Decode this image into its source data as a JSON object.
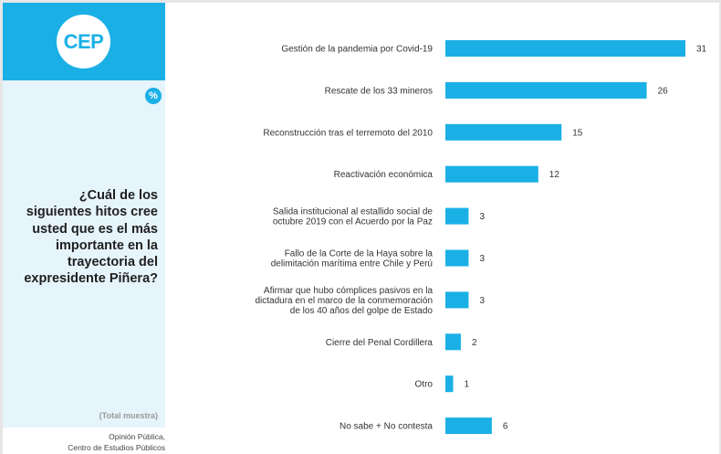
{
  "brand": {
    "logo_text": "CEP",
    "badge": "%"
  },
  "sidebar": {
    "question": "¿Cuál de los siguientes hitos cree usted que es el más importante en la trayectoria del expresidente Piñera?",
    "total": "(Total muestra)",
    "source_line1": "Opinión Pública,",
    "source_line2": "Centro de Estudios Públicos"
  },
  "colors": {
    "accent": "#1ab0e6",
    "panel": "#e6f4fb"
  },
  "chart_data": {
    "type": "bar",
    "orientation": "horizontal",
    "unit": "%",
    "categories": [
      [
        "Gestión de la pandemia por Covid-19"
      ],
      [
        "Rescate de los 33 mineros"
      ],
      [
        "Reconstrucción tras el terremoto del 2010"
      ],
      [
        "Reactivación económica"
      ],
      [
        "Salida institucional al estallido social de",
        "octubre 2019 con el Acuerdo por la Paz"
      ],
      [
        "Fallo de la Corte de la Haya sobre la",
        "delimitación marítima entre Chile y Perú"
      ],
      [
        "Afirmar que hubo cómplices pasivos en la",
        "dictadura en el marco de la conmemoración",
        "de los 40 años del golpe de Estado"
      ],
      [
        "Cierre del Penal Cordillera"
      ],
      [
        "Otro"
      ],
      [
        "No sabe + No contesta"
      ]
    ],
    "values": [
      31,
      26,
      15,
      12,
      3,
      3,
      3,
      2,
      1,
      6
    ],
    "data_labels": [
      "31",
      "26",
      "15",
      "12",
      "3",
      "3",
      "3",
      "2",
      "1",
      "6"
    ],
    "xlim": [
      0,
      31
    ],
    "grid": false,
    "legend": "none"
  }
}
